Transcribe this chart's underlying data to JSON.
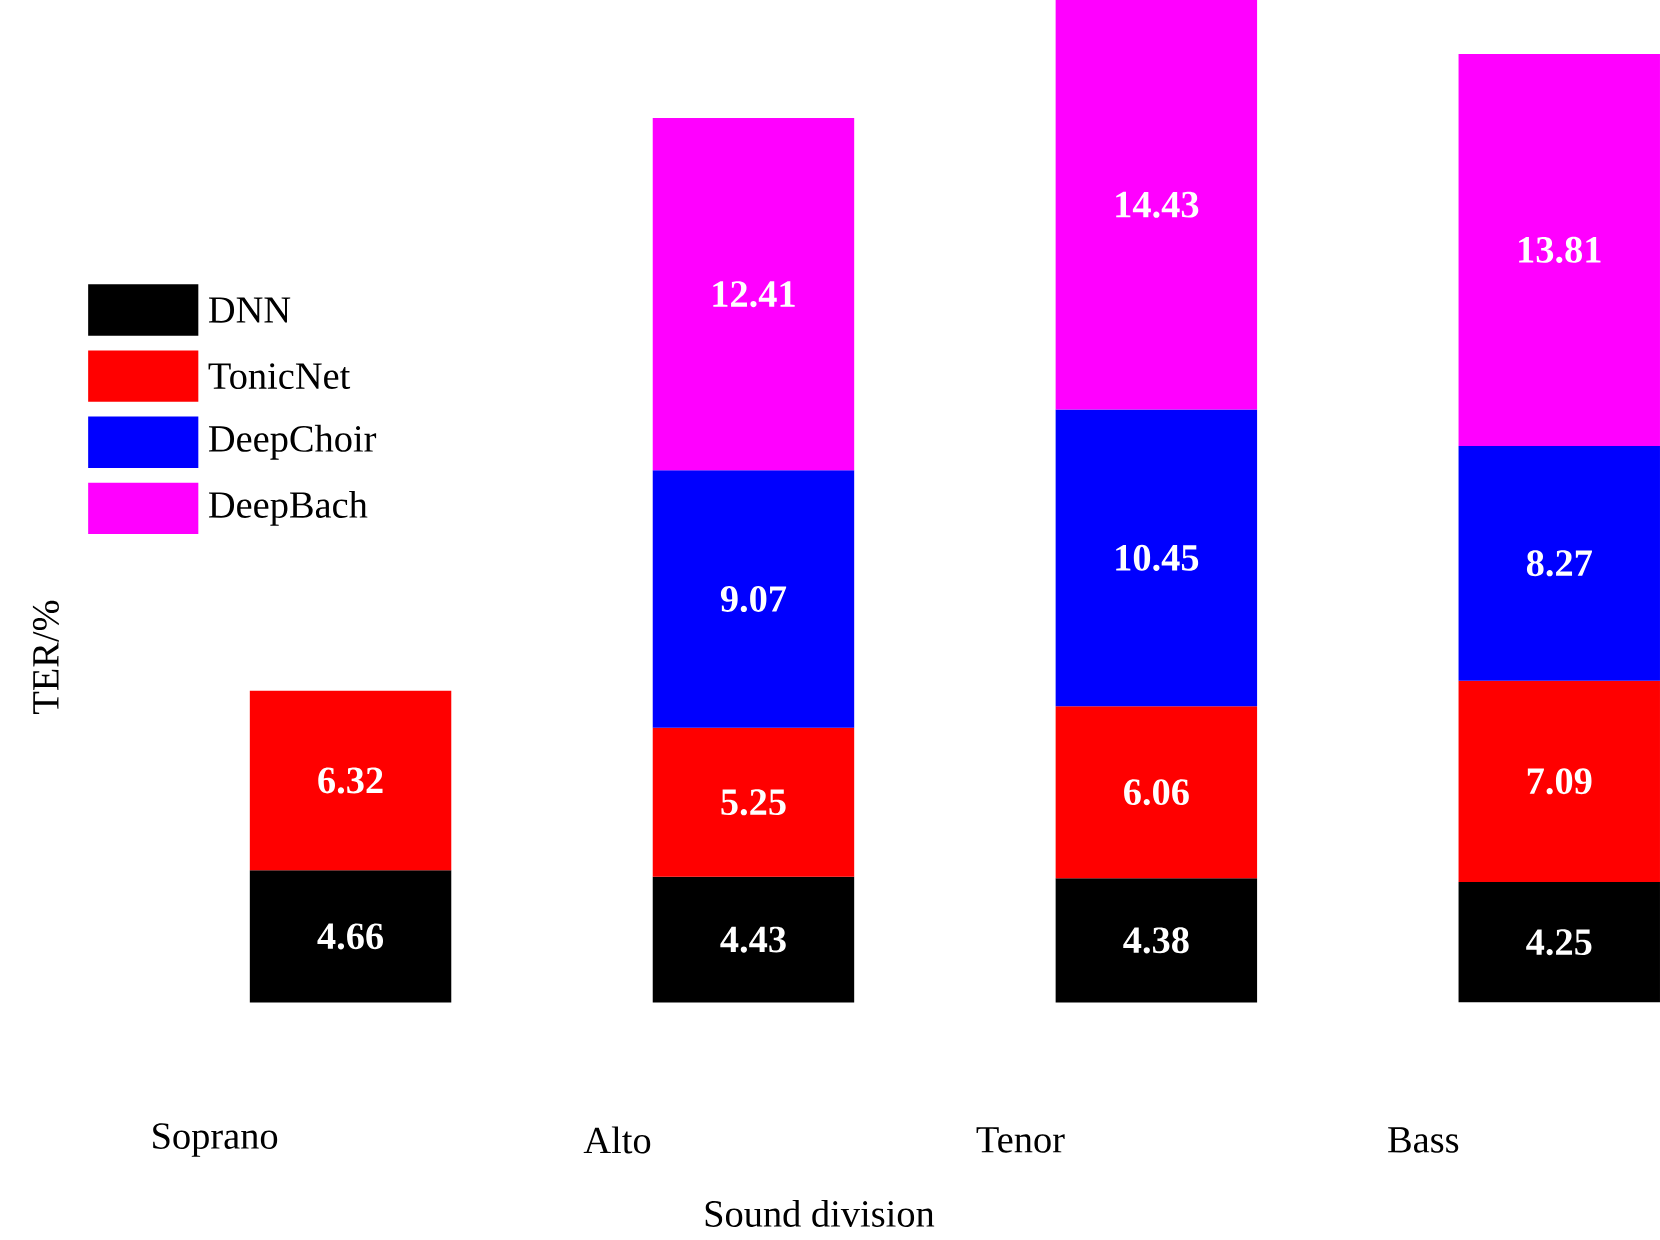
{
  "chart_data": {
    "type": "bar",
    "stacked": true,
    "xlabel": "Sound division",
    "ylabel": "TER/%",
    "categories": [
      "Soprano",
      "Alto",
      "Tenor",
      "Bass"
    ],
    "series": [
      {
        "name": "DNN",
        "color": "#000000",
        "values": [
          4.66,
          4.43,
          4.38,
          4.25
        ]
      },
      {
        "name": "TonicNet",
        "color": "#ff0000",
        "values": [
          6.32,
          5.25,
          6.06,
          7.09
        ]
      },
      {
        "name": "DeepChoir",
        "color": "#0000ff",
        "values": [
          null,
          9.07,
          10.45,
          8.27
        ]
      },
      {
        "name": "DeepBach",
        "color": "#ff00ff",
        "values": [
          null,
          12.41,
          14.43,
          13.81
        ]
      }
    ],
    "data_labels": true,
    "legend": "top left"
  }
}
